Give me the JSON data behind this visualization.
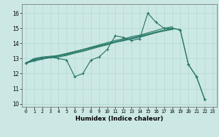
{
  "title": "",
  "xlabel": "Humidex (Indice chaleur)",
  "background_color": "#cce8e4",
  "grid_color": "#b0d8d4",
  "line_color": "#2a7a6a",
  "xlim": [
    -0.5,
    23.5
  ],
  "ylim": [
    9.8,
    16.6
  ],
  "yticks": [
    10,
    11,
    12,
    13,
    14,
    15,
    16
  ],
  "xticks": [
    0,
    1,
    2,
    3,
    4,
    5,
    6,
    7,
    8,
    9,
    10,
    11,
    12,
    13,
    14,
    15,
    16,
    17,
    18,
    19,
    20,
    21,
    22,
    23
  ],
  "line1": [
    12.7,
    12.9,
    13.0,
    13.1,
    13.0,
    12.9,
    11.8,
    12.0,
    12.9,
    13.1,
    13.6,
    14.5,
    14.4,
    14.2,
    14.3,
    16.0,
    15.4,
    15.0,
    15.0,
    14.9,
    12.6,
    11.8,
    10.3,
    null
  ],
  "line2_upper": [
    12.7,
    13.0,
    13.1,
    13.15,
    13.2,
    13.3,
    13.45,
    13.6,
    13.75,
    13.9,
    14.05,
    14.2,
    14.3,
    14.45,
    14.55,
    14.7,
    14.85,
    15.0,
    15.1,
    null,
    null,
    null,
    null,
    null
  ],
  "line2_mid": [
    12.7,
    12.97,
    13.05,
    13.1,
    13.15,
    13.25,
    13.4,
    13.52,
    13.67,
    13.82,
    13.95,
    14.12,
    14.22,
    14.35,
    14.45,
    14.6,
    14.75,
    14.87,
    14.97,
    null,
    null,
    null,
    null,
    null
  ],
  "line2_lower": [
    12.65,
    12.93,
    12.98,
    13.05,
    13.1,
    13.2,
    13.35,
    13.47,
    13.62,
    13.77,
    13.9,
    14.07,
    14.17,
    14.3,
    14.4,
    14.55,
    14.7,
    14.82,
    14.92,
    null,
    null,
    null,
    null,
    null
  ],
  "line3": [
    12.7,
    null,
    null,
    null,
    null,
    null,
    null,
    null,
    null,
    null,
    null,
    null,
    null,
    null,
    null,
    null,
    null,
    null,
    15.0,
    14.9,
    12.6,
    11.8,
    10.3,
    null
  ]
}
